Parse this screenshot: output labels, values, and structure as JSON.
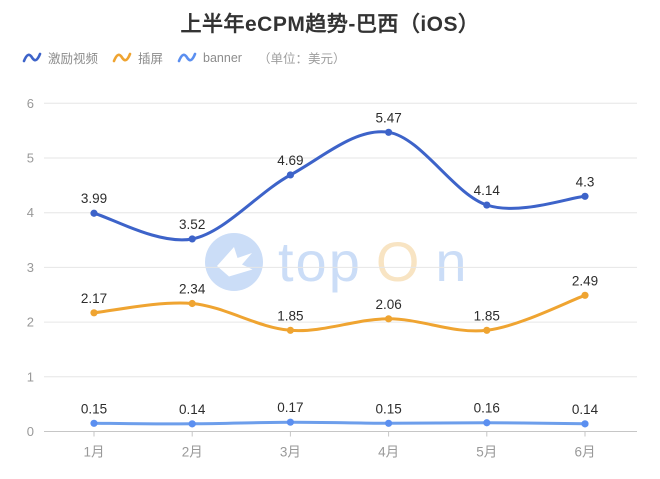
{
  "title": "上半年eCPM趋势-巴西（iOS）",
  "legend": {
    "items": [
      {
        "label": "激励视频",
        "color": "#3D63C9"
      },
      {
        "label": "插屏",
        "color": "#EFA431"
      },
      {
        "label": "banner",
        "color": "#5B8FF0"
      }
    ],
    "unit_note": "（单位：美元）"
  },
  "chart_data": {
    "type": "line",
    "smooth": true,
    "categories": [
      "1月",
      "2月",
      "3月",
      "4月",
      "5月",
      "6月"
    ],
    "series": [
      {
        "name": "激励视频",
        "color": "#3D63C9",
        "dot_color": "#3D63C9",
        "values": [
          3.99,
          3.52,
          4.69,
          5.47,
          4.14,
          4.3
        ]
      },
      {
        "name": "插屏",
        "color": "#EFA431",
        "dot_color": "#EFA431",
        "values": [
          2.17,
          2.34,
          1.85,
          2.06,
          1.85,
          2.49
        ]
      },
      {
        "name": "banner",
        "color": "#6D9EEB",
        "dot_color": "#5B8FF0",
        "values": [
          0.15,
          0.14,
          0.17,
          0.15,
          0.16,
          0.14
        ]
      }
    ],
    "title": "上半年eCPM趋势-巴西（iOS）",
    "xlabel": "",
    "ylabel": "",
    "ylim": [
      0,
      6
    ],
    "yticks": [
      0,
      1,
      2,
      3,
      4,
      5,
      6
    ],
    "grid": true,
    "legend_position": "top-left",
    "unit": "美元"
  },
  "watermark": {
    "parts": [
      "top",
      "O",
      "n"
    ]
  }
}
